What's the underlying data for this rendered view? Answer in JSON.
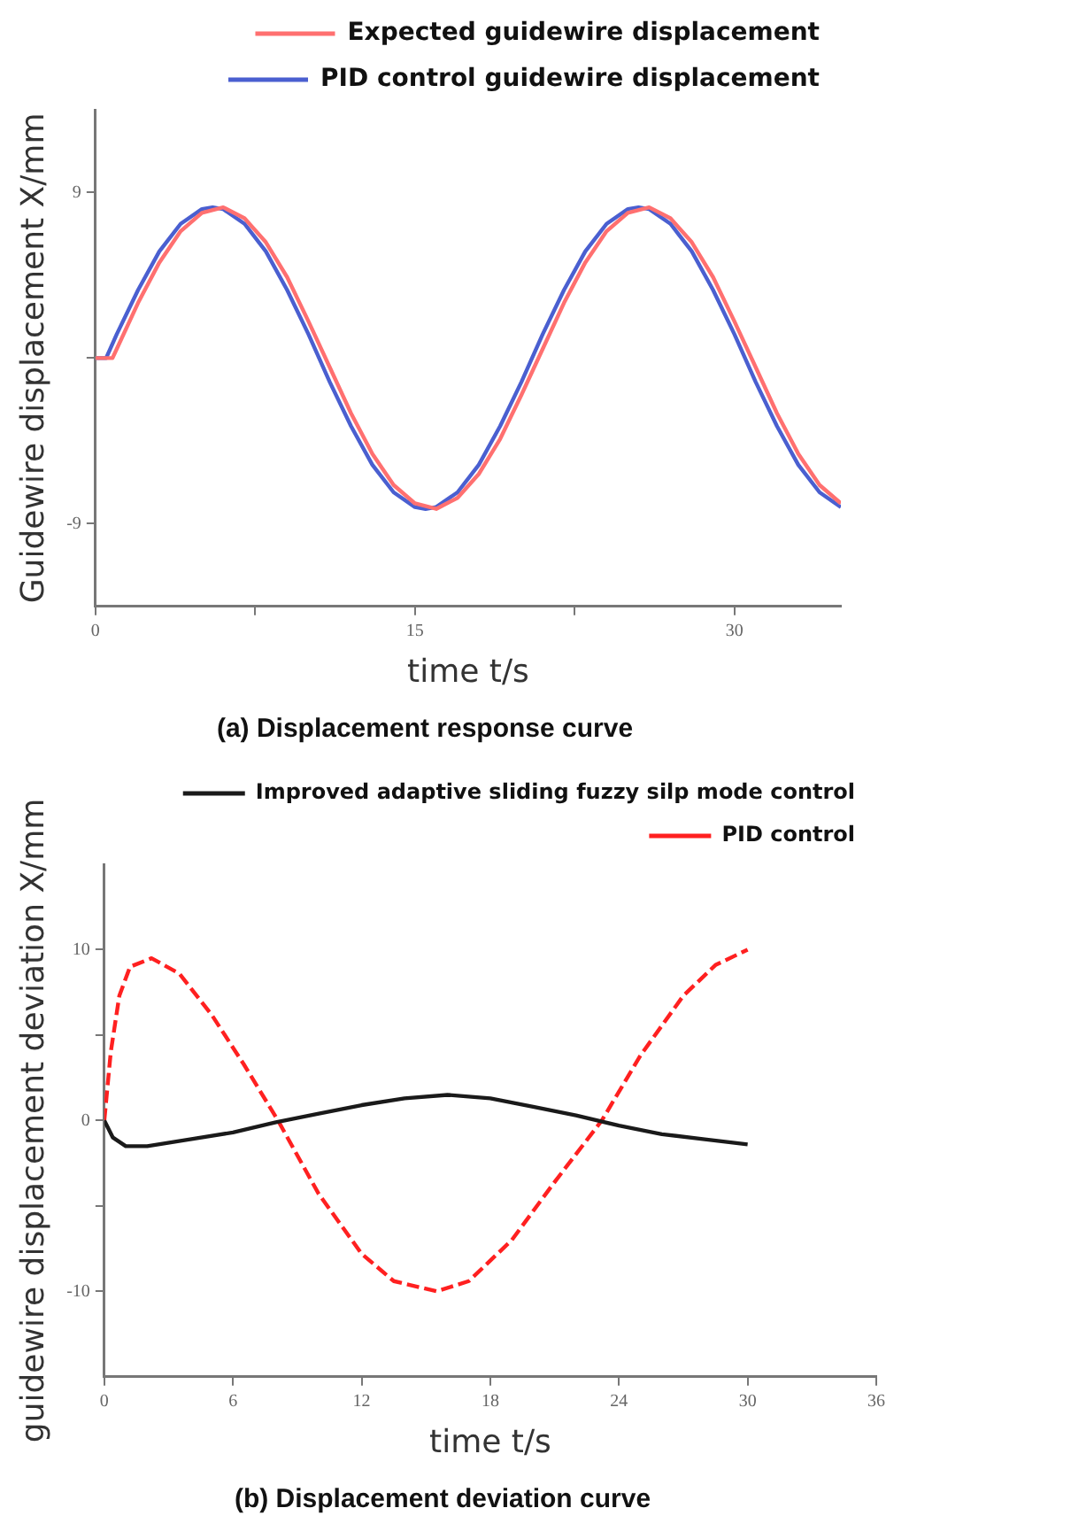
{
  "chart_data": [
    {
      "type": "line",
      "title": "(a) Displacement response curve",
      "xlabel": "time t/s",
      "ylabel": "Guidewire displacement X/mm",
      "xlim": [
        0,
        35
      ],
      "ylim": [
        -13.5,
        13.5
      ],
      "xticks": [
        0,
        {
          "value": 7.5,
          "label": null
        },
        15,
        {
          "value": 22.5,
          "label": null
        },
        30
      ],
      "yticks": [
        -9,
        {
          "value": 0,
          "label": null
        },
        9
      ],
      "grid": false,
      "legend": "top right",
      "marker": "none",
      "series": [
        {
          "name": "Expected guidewire displacement",
          "color": "#ff7070",
          "line_style": "solid",
          "x": [
            0,
            0.8,
            1,
            2,
            3,
            4,
            5,
            6,
            7,
            8,
            9,
            10,
            11,
            12,
            13,
            14,
            15,
            16,
            17,
            18,
            19,
            20,
            21,
            22,
            23,
            24,
            25,
            26,
            27,
            28,
            29,
            30,
            31,
            32,
            33,
            34,
            35
          ],
          "values": [
            0,
            0,
            0.5,
            3.0,
            5.2,
            6.9,
            7.9,
            8.2,
            7.6,
            6.3,
            4.4,
            2.0,
            -0.5,
            -3.0,
            -5.2,
            -6.9,
            -7.9,
            -8.2,
            -7.6,
            -6.3,
            -4.4,
            -2.0,
            0.5,
            3.0,
            5.2,
            6.9,
            7.9,
            8.2,
            7.6,
            6.3,
            4.4,
            2.0,
            -0.5,
            -3.0,
            -5.2,
            -6.9,
            -7.9
          ]
        },
        {
          "name": "PID control guidewire displacement",
          "color": "#4a5fd0",
          "line_style": "solid",
          "x": [
            0,
            0.5,
            1,
            2,
            3,
            4,
            5,
            5.5,
            6,
            7,
            8,
            9,
            10,
            11,
            12,
            13,
            14,
            15,
            15.5,
            16,
            17,
            18,
            19,
            20,
            21,
            22,
            23,
            24,
            25,
            25.5,
            26,
            27,
            28,
            29,
            30,
            31,
            32,
            33,
            34,
            35
          ],
          "values": [
            0,
            0,
            1.3,
            3.7,
            5.8,
            7.3,
            8.1,
            8.2,
            8.1,
            7.3,
            5.8,
            3.7,
            1.3,
            -1.3,
            -3.7,
            -5.8,
            -7.3,
            -8.1,
            -8.2,
            -8.1,
            -7.3,
            -5.8,
            -3.7,
            -1.3,
            1.3,
            3.7,
            5.8,
            7.3,
            8.1,
            8.2,
            8.1,
            7.3,
            5.8,
            3.7,
            1.3,
            -1.3,
            -3.7,
            -5.8,
            -7.3,
            -8.1
          ]
        }
      ]
    },
    {
      "type": "line",
      "title": "(b) Displacement deviation curve",
      "xlabel": "time t/s",
      "ylabel": "guidewire displacement deviation X/mm",
      "xlim": [
        0,
        36
      ],
      "ylim": [
        -15,
        15
      ],
      "xticks": [
        0,
        6,
        12,
        18,
        24,
        30,
        36
      ],
      "yticks": [
        -10,
        {
          "value": -5,
          "label": null
        },
        0,
        {
          "value": 5,
          "label": null
        },
        10
      ],
      "grid": false,
      "legend": "top right",
      "marker": "none",
      "series": [
        {
          "name": "Improved adaptive sliding fuzzy silp mode control",
          "color": "#1a1a1a",
          "line_style": "solid",
          "x": [
            0,
            0.4,
            1,
            2,
            4,
            6,
            8,
            10,
            12,
            14,
            16,
            18,
            20,
            22,
            24,
            26,
            28,
            30
          ],
          "values": [
            0,
            -1,
            -1.5,
            -1.5,
            -1.1,
            -0.7,
            -0.1,
            0.4,
            0.9,
            1.3,
            1.5,
            1.3,
            0.8,
            0.3,
            -0.3,
            -0.8,
            -1.1,
            -1.4
          ]
        },
        {
          "name": "PID control",
          "color": "#ff2020",
          "line_style": "dashed",
          "x": [
            0,
            0.3,
            0.7,
            1.2,
            2.2,
            3.5,
            5,
            6.5,
            8.1,
            10,
            12,
            13.5,
            15.5,
            17,
            19,
            21,
            23.2,
            25,
            27,
            28.5,
            30
          ],
          "values": [
            0,
            4,
            7.3,
            9,
            9.5,
            8.6,
            6.2,
            3.3,
            0,
            -4.3,
            -7.8,
            -9.4,
            -10,
            -9.4,
            -7,
            -3.6,
            0,
            3.8,
            7.3,
            9.1,
            10
          ]
        }
      ]
    }
  ]
}
